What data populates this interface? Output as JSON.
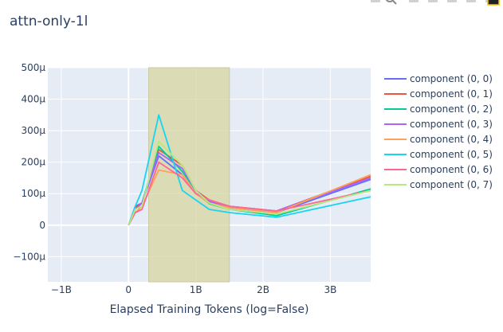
{
  "title": "attn-only-1l",
  "colors": {
    "plot_bg": "#e5ecf6",
    "grid": "#ffffff",
    "text": "#2a3f5f",
    "highlight_fill": "rgba(215,215,160,0.75)",
    "highlight_stroke": "#c8c8a0"
  },
  "modebar_icons": [
    "camera-icon",
    "zoom-icon",
    "pan-icon",
    "box-select-icon",
    "lasso-icon",
    "zoom-in-icon",
    "zoom-out-icon",
    "plotly-logo-icon"
  ],
  "chart_data": {
    "type": "line",
    "xlabel": "Elapsed Training Tokens (log=False)",
    "ylabel": "",
    "xlim": [
      -1.2,
      3.6
    ],
    "ylim": [
      -0.00018,
      0.0005
    ],
    "x_ticks": [
      {
        "value": -1,
        "label": "−1B"
      },
      {
        "value": 0,
        "label": "0"
      },
      {
        "value": 1,
        "label": "1B"
      },
      {
        "value": 2,
        "label": "2B"
      },
      {
        "value": 3,
        "label": "3B"
      }
    ],
    "y_ticks": [
      {
        "value": -0.0001,
        "label": "−100μ"
      },
      {
        "value": 0,
        "label": "0"
      },
      {
        "value": 0.0001,
        "label": "100μ"
      },
      {
        "value": 0.0002,
        "label": "200μ"
      },
      {
        "value": 0.0003,
        "label": "300μ"
      },
      {
        "value": 0.0004,
        "label": "400μ"
      },
      {
        "value": 0.0005,
        "label": "500μ"
      }
    ],
    "highlight_region": {
      "x0": 0.3,
      "x1": 1.5
    },
    "legend_position": "right",
    "x": [
      0,
      0.1,
      0.2,
      0.45,
      0.8,
      1.0,
      1.2,
      1.5,
      2.2,
      3.6
    ],
    "series": [
      {
        "name": "component (0, 0)",
        "color": "#636efa",
        "values": [
          0,
          6e-05,
          7e-05,
          0.00022,
          0.00016,
          0.0001,
          7e-05,
          5.5e-05,
          4e-05,
          0.000145
        ]
      },
      {
        "name": "component (0, 1)",
        "color": "#ef553b",
        "values": [
          0,
          5.5e-05,
          7e-05,
          0.00024,
          0.00019,
          0.00011,
          8e-05,
          6e-05,
          4.5e-05,
          0.000155
        ]
      },
      {
        "name": "component (0, 2)",
        "color": "#00cc96",
        "values": [
          0,
          5e-05,
          7e-05,
          0.00025,
          0.00017,
          0.00011,
          6.8e-05,
          5e-05,
          3e-05,
          0.000115
        ]
      },
      {
        "name": "component (0, 3)",
        "color": "#ab63fa",
        "values": [
          0,
          5e-05,
          7e-05,
          0.00023,
          0.00018,
          0.00011,
          7.5e-05,
          6e-05,
          4.5e-05,
          0.00015
        ]
      },
      {
        "name": "component (0, 4)",
        "color": "#ffa15a",
        "values": [
          0,
          4e-05,
          6e-05,
          0.000175,
          0.00016,
          0.0001,
          7e-05,
          5.5e-05,
          4e-05,
          0.00016
        ]
      },
      {
        "name": "component (0, 5)",
        "color": "#19d3f3",
        "values": [
          0,
          6e-05,
          0.00011,
          0.00035,
          0.00011,
          8e-05,
          5e-05,
          4e-05,
          2.5e-05,
          9e-05
        ]
      },
      {
        "name": "component (0, 6)",
        "color": "#ff6692",
        "values": [
          0,
          4e-05,
          5e-05,
          0.0002,
          0.00015,
          0.0001,
          8e-05,
          6e-05,
          4.5e-05,
          0.00011
        ]
      },
      {
        "name": "component (0, 7)",
        "color": "#b6e880",
        "values": [
          0,
          5e-05,
          6e-05,
          0.000265,
          0.00019,
          0.00011,
          7e-05,
          5e-05,
          3.5e-05,
          0.00011
        ]
      }
    ]
  }
}
